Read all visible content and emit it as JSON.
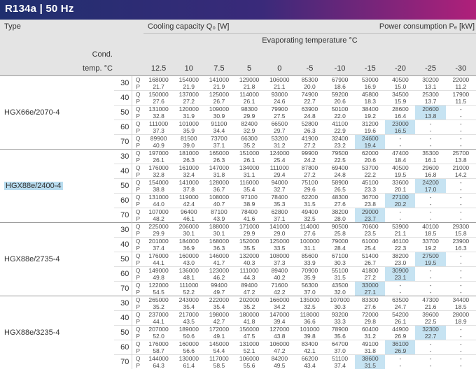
{
  "title": "R134a | 50 Hz",
  "header": {
    "type": "Type",
    "cooling": "Cooling capacity  Q₀  [W]",
    "power": "Power consumption  Pₑ  [kW]",
    "evap": "Evaporating temperature °C",
    "cond": "Cond.",
    "temp": "temp. °C",
    "evap_temps": [
      "12.5",
      "10",
      "7.5",
      "5",
      "0",
      "-5",
      "-10",
      "-15",
      "-20",
      "-25",
      "-30"
    ]
  },
  "models": [
    {
      "name": "HGX66e/2070-4",
      "selected": false,
      "rows": [
        {
          "temp": "30",
          "q": [
            "168000",
            "154000",
            "141000",
            "129000",
            "106000",
            "85300",
            "67900",
            "53000",
            "40500",
            "30200",
            "22000"
          ],
          "p": [
            "21.7",
            "21.9",
            "21.9",
            "21.8",
            "21.1",
            "20.0",
            "18.6",
            "16.9",
            "15.0",
            "13.1",
            "11.2"
          ]
        },
        {
          "temp": "40",
          "q": [
            "150000",
            "137000",
            "125000",
            "114000",
            "93000",
            "74900",
            "59200",
            "45800",
            "34500",
            "25300",
            "17900"
          ],
          "p": [
            "27.6",
            "27.2",
            "26.7",
            "26.1",
            "24.6",
            "22.7",
            "20.6",
            "18.3",
            "15.9",
            "13.7",
            "11.5"
          ]
        },
        {
          "temp": "50",
          "q": [
            "131000",
            "120000",
            "109000",
            "98300",
            "79900",
            "63900",
            "50100",
            "38400",
            "28600",
            "20600",
            "-"
          ],
          "p": [
            "32.8",
            "31.9",
            "30.9",
            "29.9",
            "27.5",
            "24.8",
            "22.0",
            "19.2",
            "16.4",
            "13.8",
            "-"
          ]
        },
        {
          "temp": "60",
          "q": [
            "111000",
            "101000",
            "91100",
            "82400",
            "66500",
            "52800",
            "41100",
            "31200",
            "23000",
            "-",
            "-"
          ],
          "p": [
            "37.3",
            "35.9",
            "34.4",
            "32.9",
            "29.7",
            "26.3",
            "22.9",
            "19.6",
            "16.5",
            "-",
            "-"
          ]
        },
        {
          "temp": "70",
          "q": [
            "89900",
            "81500",
            "73700",
            "66300",
            "53200",
            "41900",
            "32400",
            "24600",
            "-",
            "-",
            "-"
          ],
          "p": [
            "40.9",
            "39.0",
            "37.1",
            "35.2",
            "31.2",
            "27.2",
            "23.2",
            "19.4",
            "-",
            "-",
            "-"
          ]
        }
      ]
    },
    {
      "name": "HGX88e/2400-4",
      "selected": true,
      "rows": [
        {
          "temp": "30",
          "q": [
            "197000",
            "181000",
            "165000",
            "151000",
            "124000",
            "99900",
            "79500",
            "62000",
            "47400",
            "35300",
            "25700"
          ],
          "p": [
            "26.1",
            "26.3",
            "26.3",
            "26.1",
            "25.4",
            "24.2",
            "22.5",
            "20.6",
            "18.4",
            "16.1",
            "13.8"
          ]
        },
        {
          "temp": "40",
          "q": [
            "176000",
            "161000",
            "147000",
            "134000",
            "111000",
            "87800",
            "69400",
            "53700",
            "40500",
            "29600",
            "21000"
          ],
          "p": [
            "32.8",
            "32.4",
            "31.8",
            "31.1",
            "29.4",
            "27.2",
            "24.8",
            "22.2",
            "19.5",
            "16.8",
            "14.2"
          ]
        },
        {
          "temp": "50",
          "q": [
            "154000",
            "141000",
            "128000",
            "116000",
            "94000",
            "75100",
            "58900",
            "45100",
            "33600",
            "24200",
            "-"
          ],
          "p": [
            "38.8",
            "37.8",
            "36.7",
            "35.4",
            "32.7",
            "29.6",
            "26.5",
            "23.3",
            "20.1",
            "17.0",
            "-"
          ]
        },
        {
          "temp": "60",
          "q": [
            "131000",
            "119000",
            "108000",
            "97100",
            "78400",
            "62200",
            "48300",
            "36700",
            "27100",
            "-",
            "-"
          ],
          "p": [
            "44.0",
            "42.4",
            "40.7",
            "38.9",
            "35.3",
            "31.5",
            "27.6",
            "23.8",
            "20.2",
            "-",
            "-"
          ]
        },
        {
          "temp": "70",
          "q": [
            "107000",
            "96400",
            "87100",
            "78400",
            "62800",
            "49400",
            "38200",
            "29000",
            "-",
            "-",
            "-"
          ],
          "p": [
            "48.2",
            "46.1",
            "43.9",
            "41.6",
            "37.1",
            "32.5",
            "28.0",
            "23.7",
            "-",
            "-",
            "-"
          ]
        }
      ]
    },
    {
      "name": "HGX88e/2735-4",
      "selected": false,
      "rows": [
        {
          "temp": "30",
          "q": [
            "225000",
            "206000",
            "188000",
            "171000",
            "141000",
            "114000",
            "90500",
            "70600",
            "53900",
            "40100",
            "29300"
          ],
          "p": [
            "29.9",
            "30.1",
            "30.1",
            "29.9",
            "29.0",
            "27.6",
            "25.8",
            "23.5",
            "21.1",
            "18.5",
            "15.8"
          ]
        },
        {
          "temp": "40",
          "q": [
            "201000",
            "184000",
            "168000",
            "152000",
            "125000",
            "100000",
            "79000",
            "61000",
            "46100",
            "33700",
            "23900"
          ],
          "p": [
            "37.4",
            "36.9",
            "36.3",
            "35.5",
            "33.5",
            "31.1",
            "28.4",
            "25.4",
            "22.3",
            "19.2",
            "16.3"
          ]
        },
        {
          "temp": "50",
          "q": [
            "176000",
            "160000",
            "146000",
            "132000",
            "108000",
            "85600",
            "67100",
            "51400",
            "38200",
            "27500",
            "-"
          ],
          "p": [
            "44.1",
            "43.0",
            "41.7",
            "40.3",
            "37.3",
            "33.9",
            "30.3",
            "26.7",
            "23.0",
            "19.5",
            "-"
          ]
        },
        {
          "temp": "60",
          "q": [
            "149000",
            "136000",
            "123000",
            "111000",
            "89400",
            "70900",
            "55100",
            "41800",
            "30900",
            "-",
            "-"
          ],
          "p": [
            "49.8",
            "48.1",
            "46.2",
            "44.3",
            "40.2",
            "35.9",
            "31.5",
            "27.2",
            "23.1",
            "-",
            "-"
          ]
        },
        {
          "temp": "70",
          "q": [
            "122000",
            "111000",
            "99400",
            "89400",
            "71600",
            "56300",
            "43500",
            "33000",
            "-",
            "-",
            "-"
          ],
          "p": [
            "54.5",
            "52.2",
            "49.7",
            "47.2",
            "42.2",
            "37.0",
            "32.0",
            "27.1",
            "-",
            "-",
            "-"
          ]
        }
      ]
    },
    {
      "name": "HGX88e/3235-4",
      "selected": false,
      "rows": [
        {
          "temp": "30",
          "q": [
            "265000",
            "243000",
            "222000",
            "202000",
            "166000",
            "135000",
            "107000",
            "83300",
            "63500",
            "47300",
            "34400"
          ],
          "p": [
            "35.2",
            "35.4",
            "35.4",
            "35.2",
            "34.2",
            "32.5",
            "30.3",
            "27.6",
            "24.7",
            "21.6",
            "18.5"
          ]
        },
        {
          "temp": "40",
          "q": [
            "237000",
            "217000",
            "198000",
            "180000",
            "147000",
            "118000",
            "93200",
            "72000",
            "54200",
            "39600",
            "28000"
          ],
          "p": [
            "44.1",
            "43.5",
            "42.7",
            "41.8",
            "39.4",
            "36.6",
            "33.3",
            "29.8",
            "26.1",
            "22.5",
            "18.9"
          ]
        },
        {
          "temp": "50",
          "q": [
            "207000",
            "189000",
            "172000",
            "156000",
            "127000",
            "101000",
            "78900",
            "60400",
            "44900",
            "32300",
            "-"
          ],
          "p": [
            "52.0",
            "50.6",
            "49.1",
            "47.5",
            "43.8",
            "39.8",
            "35.6",
            "31.2",
            "26.9",
            "22.7",
            "-"
          ]
        },
        {
          "temp": "60",
          "q": [
            "176000",
            "160000",
            "145000",
            "131000",
            "106000",
            "83400",
            "64700",
            "49100",
            "36100",
            "-",
            "-"
          ],
          "p": [
            "58.7",
            "56.6",
            "54.4",
            "52.1",
            "47.2",
            "42.1",
            "37.0",
            "31.8",
            "26.9",
            "-",
            "-"
          ]
        },
        {
          "temp": "70",
          "q": [
            "144000",
            "130000",
            "117000",
            "106000",
            "84200",
            "66200",
            "51100",
            "38600",
            "-",
            "-",
            "-"
          ],
          "p": [
            "64.3",
            "61.4",
            "58.5",
            "55.6",
            "49.5",
            "43.4",
            "37.4",
            "31.5",
            "-",
            "-",
            "-"
          ]
        }
      ]
    }
  ]
}
